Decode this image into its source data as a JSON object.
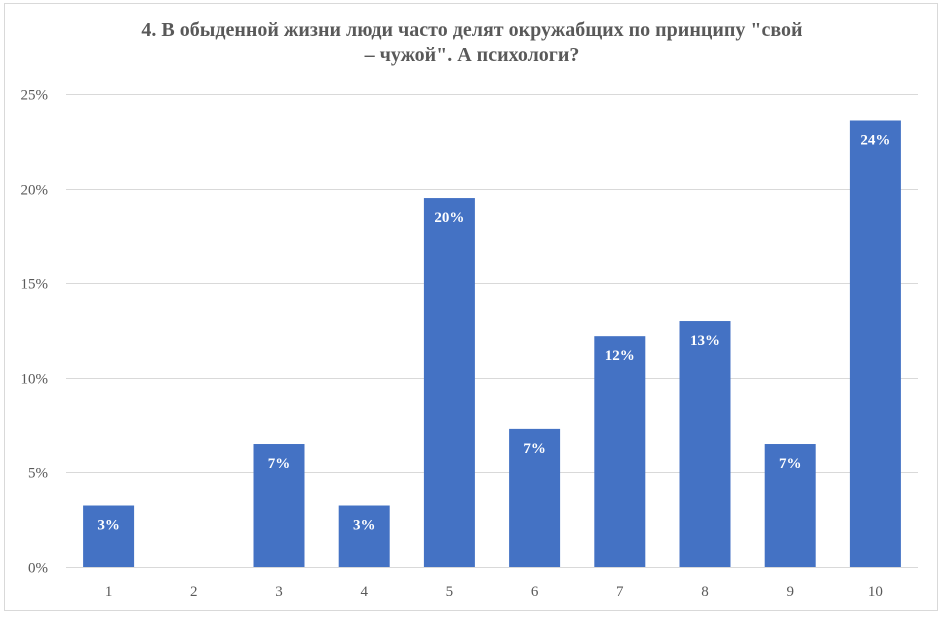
{
  "chart_data": {
    "type": "bar",
    "title_lines": [
      "4. В обыденной жизни люди часто делят окружабщих по принципу \"свой",
      "– чужой\". А психологи?"
    ],
    "categories": [
      "1",
      "2",
      "3",
      "4",
      "5",
      "6",
      "7",
      "8",
      "9",
      "10"
    ],
    "values": [
      0.0325,
      0,
      0.065,
      0.0325,
      0.195,
      0.073,
      0.122,
      0.13,
      0.065,
      0.236
    ],
    "data_labels": [
      "3%",
      "",
      "7%",
      "3%",
      "20%",
      "7%",
      "12%",
      "13%",
      "7%",
      "24%"
    ],
    "y_ticks": [
      0,
      0.05,
      0.1,
      0.15,
      0.2,
      0.25
    ],
    "y_tick_labels": [
      "0%",
      "5%",
      "10%",
      "15%",
      "20%",
      "25%"
    ],
    "ylim": [
      0,
      0.25
    ],
    "grid": true,
    "legend": "none",
    "xlabel": "",
    "ylabel": "",
    "colors": {
      "bar": "#4472c4",
      "grid": "#d9d9d9",
      "axis": "#d9d9d9",
      "text": "#595959",
      "bar_label": "#ffffff"
    }
  }
}
